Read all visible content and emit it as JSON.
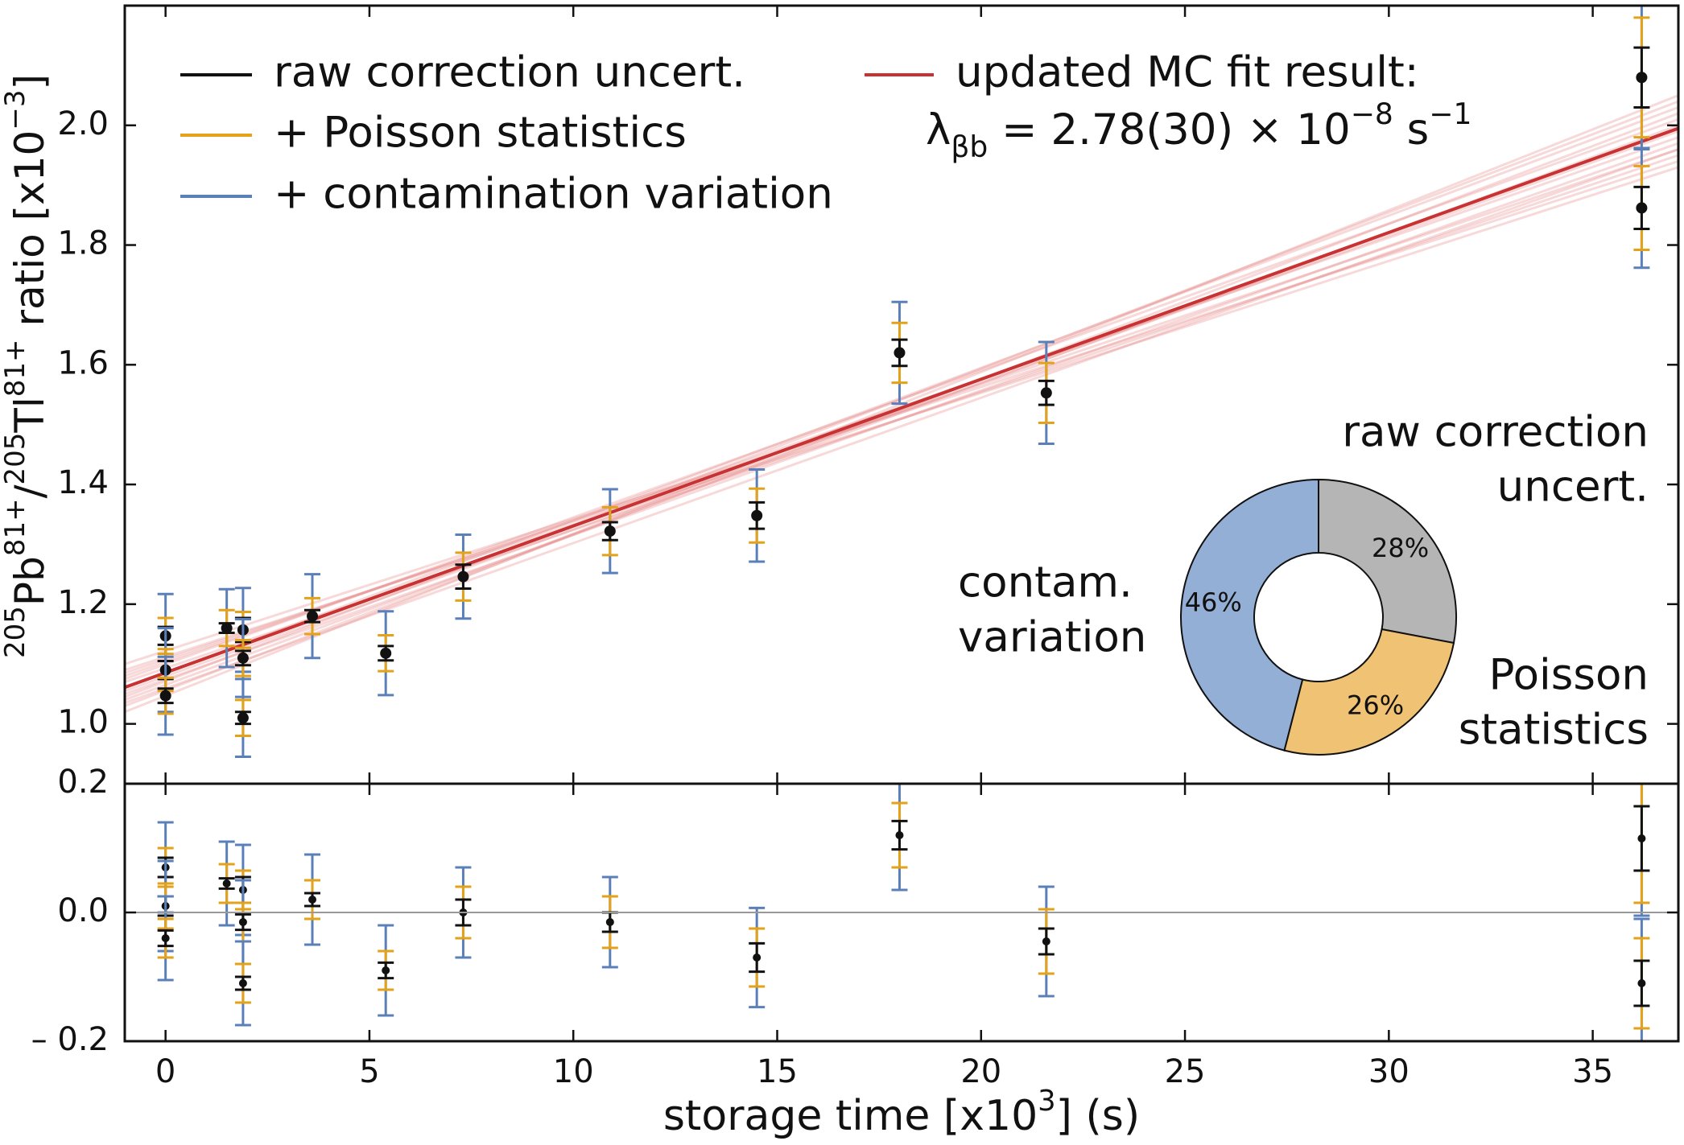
{
  "chart_data": {
    "type": "errorbar",
    "xlabel": [
      {
        "t": "storage time [x10"
      },
      {
        "t": "3",
        "sup": true
      },
      {
        "t": "] (s)"
      }
    ],
    "xlim": [
      -1,
      37.1
    ],
    "xticks": [
      0,
      5,
      10,
      15,
      20,
      25,
      30,
      35
    ],
    "main": {
      "ylabel": [
        {
          "t": "205",
          "sup": true
        },
        {
          "t": "Pb"
        },
        {
          "t": "81+",
          "sup": true
        },
        {
          "t": "/"
        },
        {
          "t": "205",
          "sup": true
        },
        {
          "t": "Tl"
        },
        {
          "t": "81+",
          "sup": true
        },
        {
          "t": " ratio [x10"
        },
        {
          "t": "−3",
          "sup": true
        },
        {
          "t": "]"
        }
      ],
      "ylim": [
        0.9,
        2.2
      ],
      "yticks": [
        {
          "value": 1,
          "label": "1.0"
        },
        1.2,
        1.4,
        1.6,
        1.8,
        {
          "value": 2,
          "label": "2.0"
        }
      ]
    },
    "residual": {
      "ylim": [
        -0.2,
        0.2
      ],
      "yticks": [
        {
          "value": -0.2,
          "label": "– 0.2"
        },
        {
          "value": 0,
          "label": "0.0"
        },
        0.2
      ],
      "zero_line_color": "#999999"
    },
    "error_series": [
      {
        "name": "raw correction uncert.",
        "color": "#111111"
      },
      {
        "name": "+ Poisson statistics",
        "color": "#e3a21a"
      },
      {
        "name": "+ contamination variation",
        "color": "#5b80b9"
      }
    ],
    "points": [
      {
        "x": 0,
        "y": 1.147,
        "residual": 0.07,
        "errors": [
          0.015,
          0.03,
          0.07
        ]
      },
      {
        "x": 0,
        "y": 1.09,
        "residual": 0.01,
        "errors": [
          0.015,
          0.035,
          0.07
        ]
      },
      {
        "x": 0,
        "y": 1.047,
        "residual": -0.04,
        "errors": [
          0.012,
          0.03,
          0.065
        ]
      },
      {
        "x": 1.5,
        "y": 1.16,
        "residual": 0.045,
        "errors": [
          0.008,
          0.03,
          0.065
        ]
      },
      {
        "x": 1.9,
        "y": 1.157,
        "residual": 0.035,
        "errors": [
          0.02,
          0.03,
          0.07
        ]
      },
      {
        "x": 1.9,
        "y": 1.11,
        "residual": -0.015,
        "errors": [
          0.012,
          0.03,
          0.065
        ]
      },
      {
        "x": 1.9,
        "y": 1.01,
        "residual": -0.11,
        "errors": [
          0.01,
          0.03,
          0.065
        ]
      },
      {
        "x": 3.6,
        "y": 1.18,
        "residual": 0.02,
        "errors": [
          0.01,
          0.03,
          0.07
        ]
      },
      {
        "x": 5.4,
        "y": 1.118,
        "residual": -0.09,
        "errors": [
          0.012,
          0.03,
          0.07
        ]
      },
      {
        "x": 7.3,
        "y": 1.246,
        "residual": 0.0,
        "errors": [
          0.02,
          0.04,
          0.07
        ]
      },
      {
        "x": 10.9,
        "y": 1.322,
        "residual": -0.015,
        "errors": [
          0.015,
          0.04,
          0.07
        ]
      },
      {
        "x": 14.5,
        "y": 1.348,
        "residual": -0.07,
        "errors": [
          0.022,
          0.045,
          0.077
        ]
      },
      {
        "x": 18.0,
        "y": 1.62,
        "residual": 0.12,
        "errors": [
          0.022,
          0.05,
          0.085
        ]
      },
      {
        "x": 21.6,
        "y": 1.553,
        "residual": -0.045,
        "errors": [
          0.02,
          0.05,
          0.085
        ]
      },
      {
        "x": 36.2,
        "y": 2.08,
        "residual": 0.115,
        "errors": [
          0.05,
          0.1,
          0.12
        ]
      },
      {
        "x": 36.2,
        "y": 1.862,
        "residual": -0.11,
        "errors": [
          0.035,
          0.07,
          0.1
        ]
      }
    ],
    "fit": {
      "name": "updated MC fit result:",
      "name_line2": [
        {
          "t": "λ"
        },
        {
          "t": "βb",
          "sub": true
        },
        {
          "t": " = 2.78(30) × 10"
        },
        {
          "t": "−8",
          "sup": true
        },
        {
          "t": " s"
        },
        {
          "t": "−1",
          "sup": true
        }
      ],
      "color": "#c83232",
      "sample_color": "#e58080",
      "x": [
        -1,
        37.1
      ],
      "y": [
        1.061,
        1.995
      ],
      "samples": [
        [
          1.03,
          2.02
        ],
        [
          1.05,
          1.97
        ],
        [
          1.07,
          1.95
        ],
        [
          1.09,
          1.93
        ],
        [
          1.02,
          2.05
        ],
        [
          1.04,
          2.0
        ],
        [
          1.08,
          1.98
        ],
        [
          1.06,
          2.03
        ],
        [
          1.1,
          1.94
        ],
        [
          1.035,
          1.96
        ],
        [
          1.075,
          2.01
        ],
        [
          1.055,
          1.99
        ],
        [
          1.045,
          2.04
        ],
        [
          1.085,
          1.96
        ]
      ]
    },
    "inset": {
      "type": "pie",
      "donut": true,
      "labels": [
        [
          "raw correction",
          "uncert."
        ],
        [
          "Poisson",
          "statistics"
        ],
        [
          "contam.",
          "variation"
        ]
      ],
      "values": [
        28,
        26,
        46
      ],
      "value_labels": [
        "28%",
        "26%",
        "46%"
      ],
      "colors": [
        "#b5b5b5",
        "#efc274",
        "#93afd5"
      ]
    }
  }
}
